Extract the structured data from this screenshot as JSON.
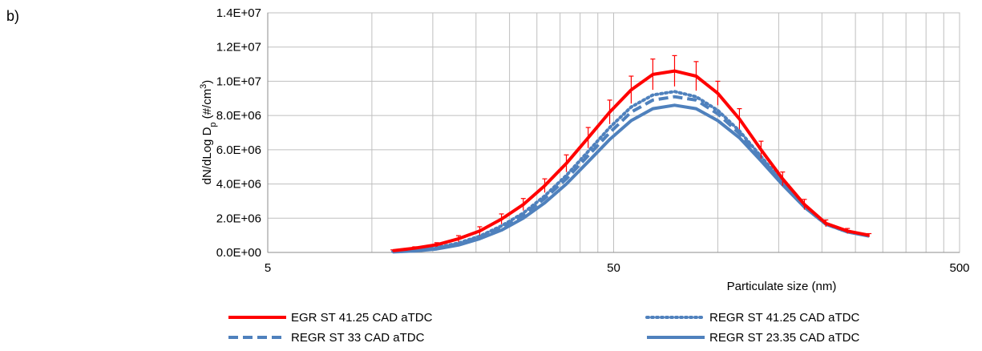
{
  "panel_label": "b)",
  "chart_data": {
    "type": "line",
    "xlabel": "Particulate size (nm)",
    "ylabel": "dN/dLog D",
    "ylabel_sub": "p",
    "ylabel_units": " (#/cm",
    "ylabel_units_sup": "3",
    "ylabel_units_end": ")",
    "xscale": "log",
    "xlim": [
      5,
      500
    ],
    "x_ticklabels": [
      "5",
      "50",
      "500"
    ],
    "ylim": [
      0,
      14000000
    ],
    "y_ticklabels": [
      "0.0E+00",
      "2.0E+06",
      "4.0E+06",
      "6.0E+06",
      "8.0E+06",
      "1.0E+07",
      "1.2E+07",
      "1.4E+07"
    ],
    "grid": true,
    "legend_position": "bottom",
    "x": [
      11.5,
      13.3,
      15.4,
      17.8,
      20.5,
      23.7,
      27.4,
      31.6,
      36.5,
      42.2,
      48.7,
      56.2,
      64.9,
      75.0,
      86.6,
      100,
      115.5,
      133.4,
      154,
      178,
      205.4,
      237.1,
      273.8
    ],
    "series": [
      {
        "name": "EGR ST 41.25 CAD aTDC",
        "style": "solid-thick",
        "color": "#ff0000",
        "values": [
          100000,
          250000,
          450000,
          800000,
          1250000,
          1950000,
          2800000,
          3900000,
          5200000,
          6700000,
          8200000,
          9500000,
          10400000,
          10600000,
          10300000,
          9300000,
          7800000,
          6000000,
          4300000,
          2800000,
          1700000,
          1250000,
          1000000
        ],
        "error": [
          50000,
          80000,
          120000,
          180000,
          250000,
          300000,
          350000,
          400000,
          500000,
          600000,
          700000,
          800000,
          900000,
          900000,
          850000,
          700000,
          600000,
          500000,
          400000,
          300000,
          200000,
          150000,
          100000
        ]
      },
      {
        "name": "REGR ST 41.25 CAD aTDC",
        "style": "dotted",
        "color": "#4f81bd",
        "values": [
          50000,
          120000,
          280000,
          550000,
          950000,
          1550000,
          2300000,
          3300000,
          4500000,
          5900000,
          7300000,
          8500000,
          9200000,
          9400000,
          9100000,
          8300000,
          7100000,
          5600000,
          4100000,
          2700000,
          1650000,
          1200000,
          1000000
        ]
      },
      {
        "name": "REGR ST 33 CAD aTDC",
        "style": "dashed",
        "color": "#4f81bd",
        "values": [
          40000,
          100000,
          250000,
          500000,
          900000,
          1450000,
          2200000,
          3150000,
          4300000,
          5650000,
          7000000,
          8200000,
          8900000,
          9100000,
          8900000,
          8100000,
          6950000,
          5500000,
          4000000,
          2650000,
          1650000,
          1200000,
          1000000
        ]
      },
      {
        "name": "REGR ST 23.35 CAD aTDC",
        "style": "solid",
        "color": "#4f81bd",
        "values": [
          30000,
          80000,
          200000,
          430000,
          800000,
          1300000,
          2000000,
          2900000,
          4000000,
          5300000,
          6600000,
          7700000,
          8400000,
          8600000,
          8400000,
          7700000,
          6700000,
          5350000,
          3950000,
          2650000,
          1650000,
          1200000,
          950000
        ]
      }
    ]
  }
}
